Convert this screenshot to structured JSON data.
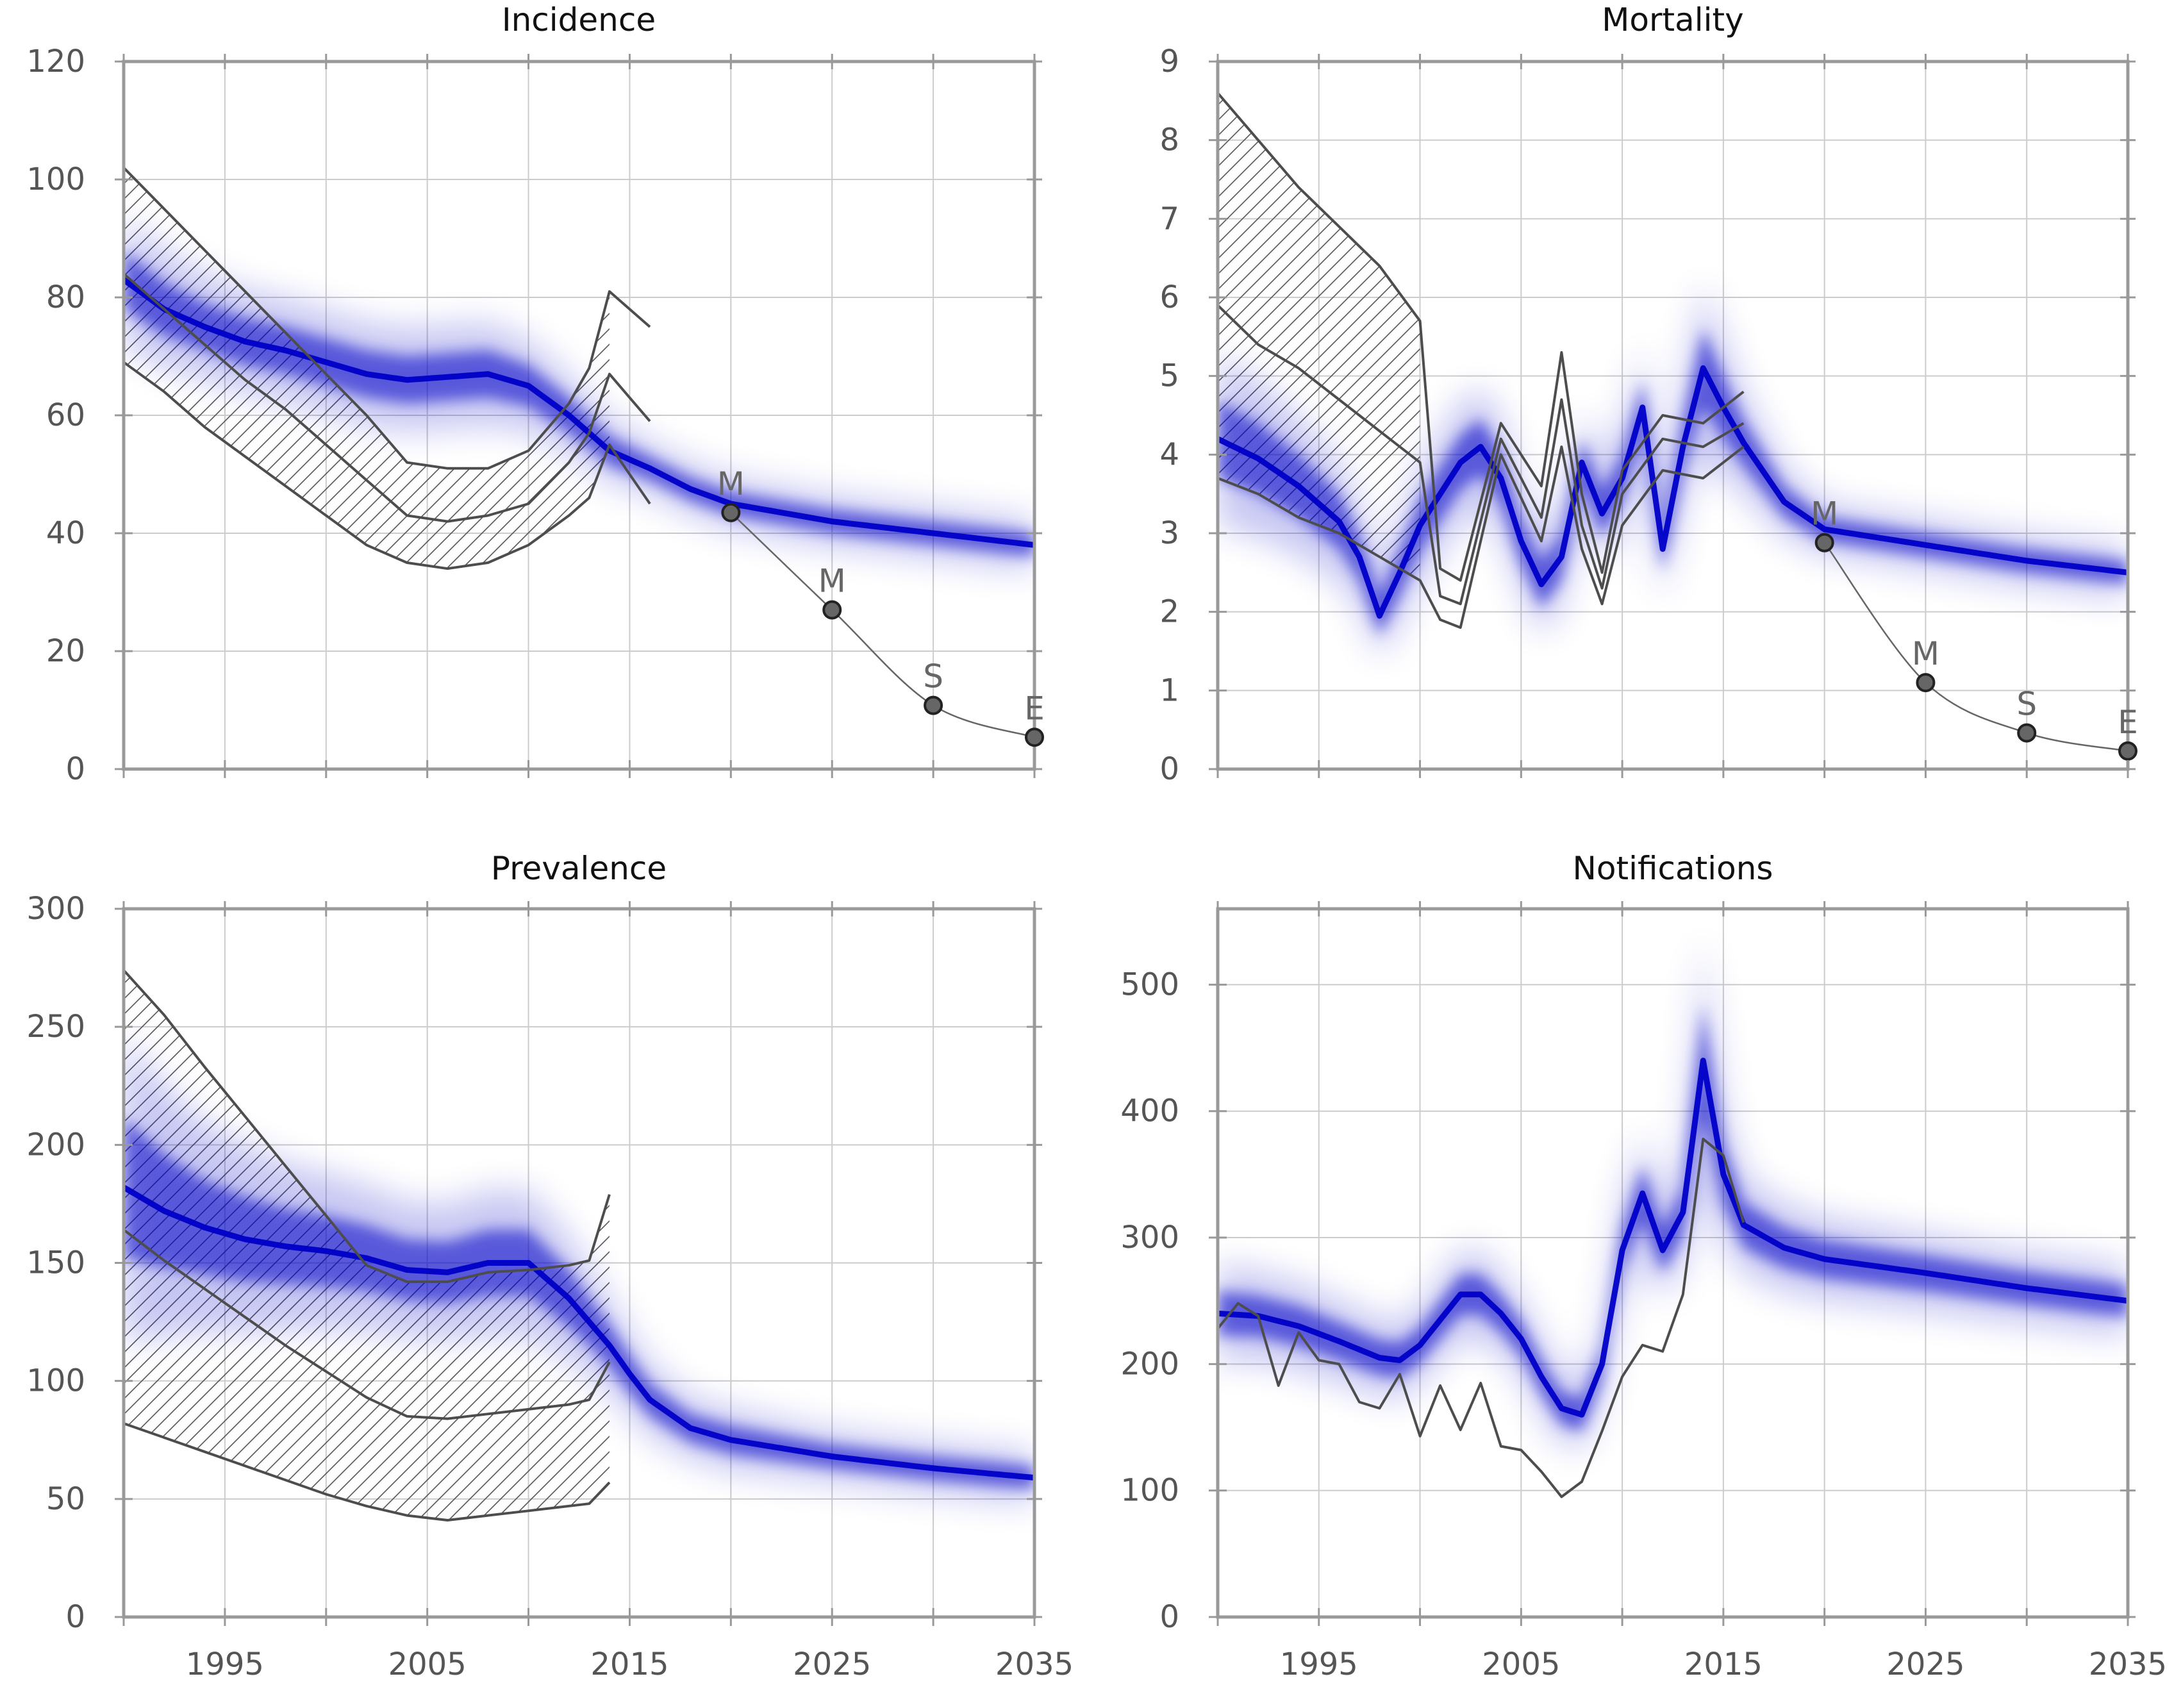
{
  "colors": {
    "band": "#0000c8",
    "grid": "#cccccc",
    "frame": "#999999",
    "observed": "#4d4d4d",
    "target_line": "#666666",
    "target_marker": "#666666",
    "hatch": "#555555"
  },
  "chart_data": [
    {
      "id": "incidence",
      "type": "line",
      "title": "Incidence",
      "xlabel": "",
      "ylabel": "",
      "xlim": [
        1990,
        2035
      ],
      "ylim": [
        0,
        120
      ],
      "x_ticks": [
        1995,
        2005,
        2015,
        2025,
        2035
      ],
      "x_minor_ticks": [
        1990,
        2000,
        2010,
        2020,
        2030
      ],
      "y_ticks": [
        0,
        20,
        40,
        60,
        80,
        100,
        120
      ],
      "show_x_tick_labels": false,
      "grid": true,
      "model_band": {
        "x": [
          1990,
          1992,
          1994,
          1996,
          1998,
          2000,
          2002,
          2004,
          2006,
          2008,
          2010,
          2012,
          2014,
          2016,
          2018,
          2020,
          2025,
          2030,
          2035
        ],
        "y": [
          83,
          78,
          75,
          72.5,
          71,
          69,
          67,
          66,
          66.5,
          67,
          65,
          60,
          54,
          51,
          47.5,
          45,
          42,
          40,
          38
        ],
        "halfwidth": [
          5,
          4.5,
          4,
          4,
          4,
          4,
          4,
          4,
          4,
          4,
          3.5,
          3,
          2.5,
          2,
          2,
          2,
          2,
          2,
          2
        ]
      },
      "observed": {
        "x": [
          1990,
          1992,
          1994,
          1996,
          1998,
          2000,
          2002,
          2004,
          2006,
          2008,
          2010,
          2012,
          2013,
          2014,
          2015,
          2016
        ],
        "upper": [
          102,
          95,
          88,
          81,
          74,
          67,
          60,
          52,
          51,
          51,
          54,
          62,
          68,
          81,
          78,
          75
        ],
        "central": [
          84,
          78,
          72,
          66,
          61,
          55,
          49,
          43,
          42,
          43,
          45,
          52,
          57,
          67,
          63,
          59
        ],
        "lower": [
          69,
          64,
          58,
          53,
          48,
          43,
          38,
          35,
          34,
          35,
          38,
          43,
          46,
          55,
          50,
          45
        ],
        "hatch_until": 2014
      },
      "targets": {
        "x": [
          2020,
          2025,
          2030,
          2035
        ],
        "y": [
          43.5,
          27,
          10.8,
          5.4
        ],
        "labels": [
          "M",
          "M",
          "S",
          "E"
        ]
      }
    },
    {
      "id": "mortality",
      "type": "line",
      "title": "Mortality",
      "xlabel": "",
      "ylabel": "",
      "xlim": [
        1990,
        2035
      ],
      "ylim": [
        0,
        9
      ],
      "x_ticks": [
        1995,
        2005,
        2015,
        2025,
        2035
      ],
      "x_minor_ticks": [
        1990,
        2000,
        2010,
        2020,
        2030
      ],
      "y_ticks": [
        0,
        1,
        2,
        3,
        4,
        5,
        6,
        7,
        8,
        9
      ],
      "show_x_tick_labels": false,
      "grid": true,
      "model_band": {
        "x": [
          1990,
          1992,
          1994,
          1996,
          1997,
          1998,
          1999,
          2000,
          2002,
          2003,
          2004,
          2005,
          2006,
          2007,
          2008,
          2009,
          2010,
          2011,
          2012,
          2013,
          2014,
          2015,
          2016,
          2018,
          2020,
          2025,
          2030,
          2035
        ],
        "y": [
          4.2,
          3.95,
          3.6,
          3.15,
          2.7,
          1.95,
          2.5,
          3.1,
          3.9,
          4.1,
          3.7,
          2.9,
          2.35,
          2.7,
          3.9,
          3.25,
          3.7,
          4.6,
          2.8,
          4.1,
          5.1,
          4.6,
          4.15,
          3.4,
          3.05,
          2.85,
          2.65,
          2.5
        ],
        "halfwidth": [
          0.5,
          0.45,
          0.4,
          0.35,
          0.3,
          0.25,
          0.3,
          0.35,
          0.35,
          0.35,
          0.35,
          0.3,
          0.3,
          0.3,
          0.3,
          0.3,
          0.3,
          0.35,
          0.3,
          0.35,
          0.5,
          0.4,
          0.3,
          0.2,
          0.15,
          0.15,
          0.15,
          0.15
        ]
      },
      "observed": {
        "x": [
          1990,
          1992,
          1994,
          1996,
          1998,
          2000,
          2001,
          2002,
          2004,
          2006,
          2007,
          2008,
          2009,
          2010,
          2012,
          2014,
          2016
        ],
        "upper": [
          8.6,
          8.0,
          7.4,
          6.9,
          6.4,
          5.7,
          2.55,
          2.4,
          4.4,
          3.6,
          5.3,
          3.5,
          2.5,
          3.8,
          4.5,
          4.4,
          4.8
        ],
        "central": [
          5.9,
          5.4,
          5.1,
          4.7,
          4.3,
          3.9,
          2.2,
          2.1,
          4.2,
          3.2,
          4.7,
          3.1,
          2.3,
          3.5,
          4.2,
          4.1,
          4.4
        ],
        "lower": [
          3.7,
          3.5,
          3.2,
          3.0,
          2.7,
          2.4,
          1.9,
          1.8,
          4.0,
          2.9,
          4.1,
          2.8,
          2.1,
          3.1,
          3.8,
          3.7,
          4.1
        ],
        "hatch_until": 2000
      },
      "targets": {
        "x": [
          2020,
          2025,
          2030,
          2035
        ],
        "y": [
          2.88,
          1.1,
          0.46,
          0.23
        ],
        "labels": [
          "M",
          "M",
          "S",
          "E"
        ]
      }
    },
    {
      "id": "prevalence",
      "type": "line",
      "title": "Prevalence",
      "xlabel": "",
      "ylabel": "",
      "xlim": [
        1990,
        2035
      ],
      "ylim": [
        0,
        300
      ],
      "x_ticks": [
        1995,
        2005,
        2015,
        2025,
        2035
      ],
      "x_minor_ticks": [
        1990,
        2000,
        2010,
        2020,
        2030
      ],
      "y_ticks": [
        0,
        50,
        100,
        150,
        200,
        250,
        300
      ],
      "show_x_tick_labels": true,
      "grid": true,
      "model_band": {
        "x": [
          1990,
          1992,
          1994,
          1996,
          1998,
          2000,
          2002,
          2004,
          2006,
          2008,
          2010,
          2012,
          2013,
          2014,
          2015,
          2016,
          2018,
          2020,
          2025,
          2030,
          2035
        ],
        "y": [
          182,
          172,
          165,
          160,
          157,
          155,
          152,
          147,
          146,
          150,
          150,
          135,
          125,
          115,
          103,
          92,
          80,
          75,
          68,
          63,
          59
        ],
        "halfwidth": [
          30,
          24,
          20,
          18,
          16,
          15,
          14,
          13,
          13,
          14,
          14,
          12,
          10,
          9,
          8,
          7,
          6,
          6,
          5,
          5,
          5
        ]
      },
      "observed": {
        "x": [
          1990,
          1992,
          1994,
          1996,
          1998,
          2000,
          2002,
          2004,
          2006,
          2008,
          2010,
          2012,
          2013,
          2014
        ],
        "upper": [
          274,
          255,
          233,
          212,
          191,
          170,
          149,
          142,
          142,
          146,
          147,
          149,
          151,
          179
        ],
        "central": [
          164,
          151,
          139,
          127,
          115,
          104,
          93,
          85,
          84,
          86,
          88,
          90,
          92,
          108
        ],
        "lower": [
          82,
          76,
          70,
          64,
          58,
          52,
          47,
          43,
          41,
          43,
          45,
          47,
          48,
          57
        ],
        "hatch_until": 2014
      },
      "targets": {
        "x": [],
        "y": [],
        "labels": []
      }
    },
    {
      "id": "notifications",
      "type": "line",
      "title": "Notifications",
      "xlabel": "",
      "ylabel": "",
      "xlim": [
        1990,
        2035
      ],
      "ylim": [
        0,
        560
      ],
      "x_ticks": [
        1995,
        2005,
        2015,
        2025,
        2035
      ],
      "x_minor_ticks": [
        1990,
        2000,
        2010,
        2020,
        2030
      ],
      "y_ticks": [
        0,
        100,
        200,
        300,
        400,
        500
      ],
      "show_x_tick_labels": true,
      "grid": true,
      "model_band": {
        "x": [
          1990,
          1992,
          1994,
          1996,
          1998,
          1999,
          2000,
          2002,
          2003,
          2004,
          2005,
          2006,
          2007,
          2008,
          2009,
          2010,
          2011,
          2012,
          2013,
          2014,
          2015,
          2016,
          2018,
          2020,
          2025,
          2030,
          2035
        ],
        "y": [
          240,
          238,
          230,
          218,
          205,
          203,
          215,
          255,
          255,
          240,
          220,
          190,
          165,
          160,
          200,
          290,
          335,
          290,
          320,
          440,
          350,
          310,
          292,
          283,
          272,
          260,
          250
        ],
        "halfwidth": [
          18,
          16,
          16,
          15,
          14,
          14,
          14,
          16,
          16,
          15,
          14,
          14,
          13,
          13,
          14,
          18,
          22,
          18,
          20,
          45,
          25,
          18,
          16,
          15,
          14,
          13,
          13
        ]
      },
      "observed": {
        "x": [
          1990,
          1991,
          1992,
          1993,
          1994,
          1995,
          1996,
          1997,
          1998,
          1999,
          2000,
          2001,
          2002,
          2003,
          2004,
          2005,
          2006,
          2007,
          2008,
          2009,
          2010,
          2011,
          2012,
          2013,
          2014,
          2015,
          2016
        ],
        "central": [
          228,
          248,
          238,
          183,
          225,
          203,
          200,
          170,
          165,
          192,
          143,
          183,
          148,
          185,
          135,
          132,
          115,
          95,
          107,
          147,
          190,
          215,
          210,
          255,
          378,
          365,
          312
        ]
      },
      "targets": {
        "x": [],
        "y": [],
        "labels": []
      }
    }
  ]
}
